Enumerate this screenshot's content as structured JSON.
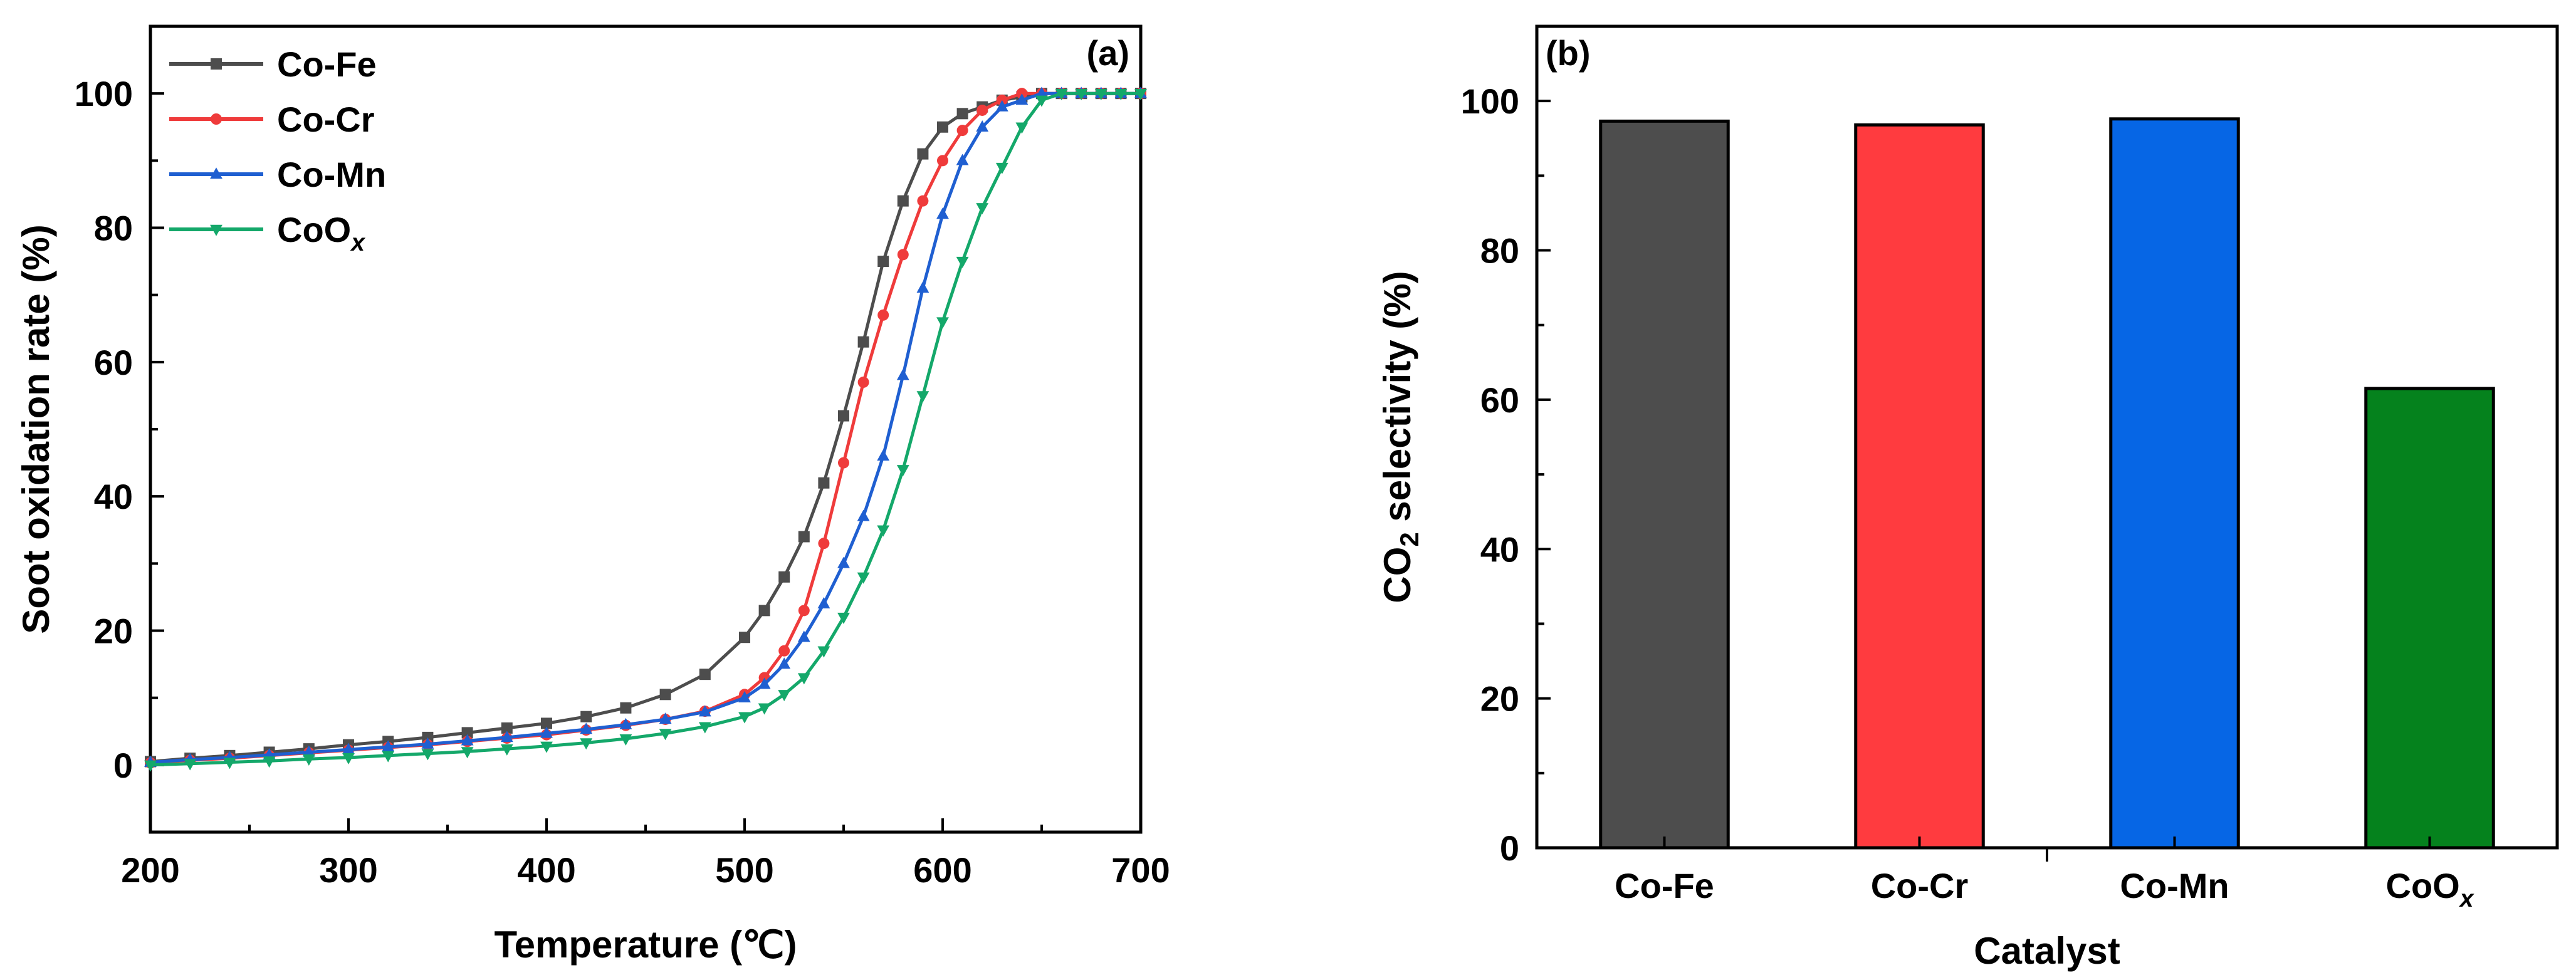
{
  "chart_data": [
    {
      "type": "line",
      "panel_label": "(a)",
      "xlabel": "Temperature (℃)",
      "ylabel": "Soot oxidation rate (%)",
      "xlim": [
        200,
        700
      ],
      "ylim": [
        -10,
        110
      ],
      "xticks": [
        200,
        300,
        400,
        500,
        600,
        700
      ],
      "yticks": [
        0,
        20,
        40,
        60,
        80,
        100
      ],
      "grid": false,
      "legend_position": "top-left",
      "x": [
        200,
        220,
        240,
        260,
        280,
        300,
        320,
        340,
        360,
        380,
        400,
        420,
        440,
        460,
        480,
        500,
        510,
        520,
        530,
        540,
        550,
        560,
        570,
        580,
        590,
        600,
        610,
        620,
        630,
        640,
        650,
        660,
        670,
        680,
        690,
        700
      ],
      "series": [
        {
          "name": "Co-Fe",
          "color": "#4d4d4d",
          "marker": "square",
          "values": [
            0.5,
            1.0,
            1.4,
            1.9,
            2.4,
            3.0,
            3.5,
            4.1,
            4.8,
            5.5,
            6.2,
            7.2,
            8.5,
            10.5,
            13.5,
            19,
            23,
            28,
            34,
            42,
            52,
            63,
            75,
            84,
            91,
            95,
            97,
            98,
            99,
            99.5,
            100,
            100,
            100,
            100,
            100,
            100
          ]
        },
        {
          "name": "Co-Cr",
          "color": "#ef3b3b",
          "marker": "circle",
          "values": [
            0.3,
            0.7,
            1.0,
            1.4,
            1.8,
            2.2,
            2.6,
            3.0,
            3.5,
            4.0,
            4.5,
            5.2,
            5.9,
            6.8,
            8.0,
            10.5,
            13,
            17,
            23,
            33,
            45,
            57,
            67,
            76,
            84,
            90,
            94.5,
            97.5,
            99,
            100,
            100,
            100,
            100,
            100,
            100,
            100
          ]
        },
        {
          "name": "Co-Mn",
          "color": "#1f5fd1",
          "marker": "triangle-up",
          "values": [
            0.4,
            0.8,
            1.1,
            1.5,
            1.9,
            2.3,
            2.7,
            3.1,
            3.6,
            4.1,
            4.7,
            5.3,
            6.0,
            6.8,
            7.9,
            10,
            12,
            15,
            19,
            24,
            30,
            37,
            46,
            58,
            71,
            82,
            90,
            95,
            98,
            99,
            100,
            100,
            100,
            100,
            100,
            100
          ]
        },
        {
          "name": "CoOx",
          "color": "#14a86a",
          "marker": "triangle-down",
          "values": [
            0.0,
            0.2,
            0.4,
            0.6,
            0.9,
            1.1,
            1.4,
            1.7,
            2.0,
            2.4,
            2.8,
            3.3,
            3.9,
            4.7,
            5.7,
            7.2,
            8.5,
            10.5,
            13,
            17,
            22,
            28,
            35,
            44,
            55,
            66,
            75,
            83,
            89,
            95,
            99,
            100,
            100,
            100,
            100,
            100
          ]
        }
      ]
    },
    {
      "type": "bar",
      "panel_label": "(b)",
      "xlabel": "Catalyst",
      "ylabel": "CO2 selectivity (%)",
      "ylim": [
        0,
        110
      ],
      "yticks": [
        0,
        20,
        40,
        60,
        80,
        100
      ],
      "grid": false,
      "categories": [
        "Co-Fe",
        "Co-Cr",
        "Co-Mn",
        "CoOx"
      ],
      "values": [
        97.3,
        96.8,
        97.6,
        61.5
      ],
      "colors": [
        "#4d4d4d",
        "#ff3b3f",
        "#0666e5",
        "#05821d"
      ]
    }
  ]
}
